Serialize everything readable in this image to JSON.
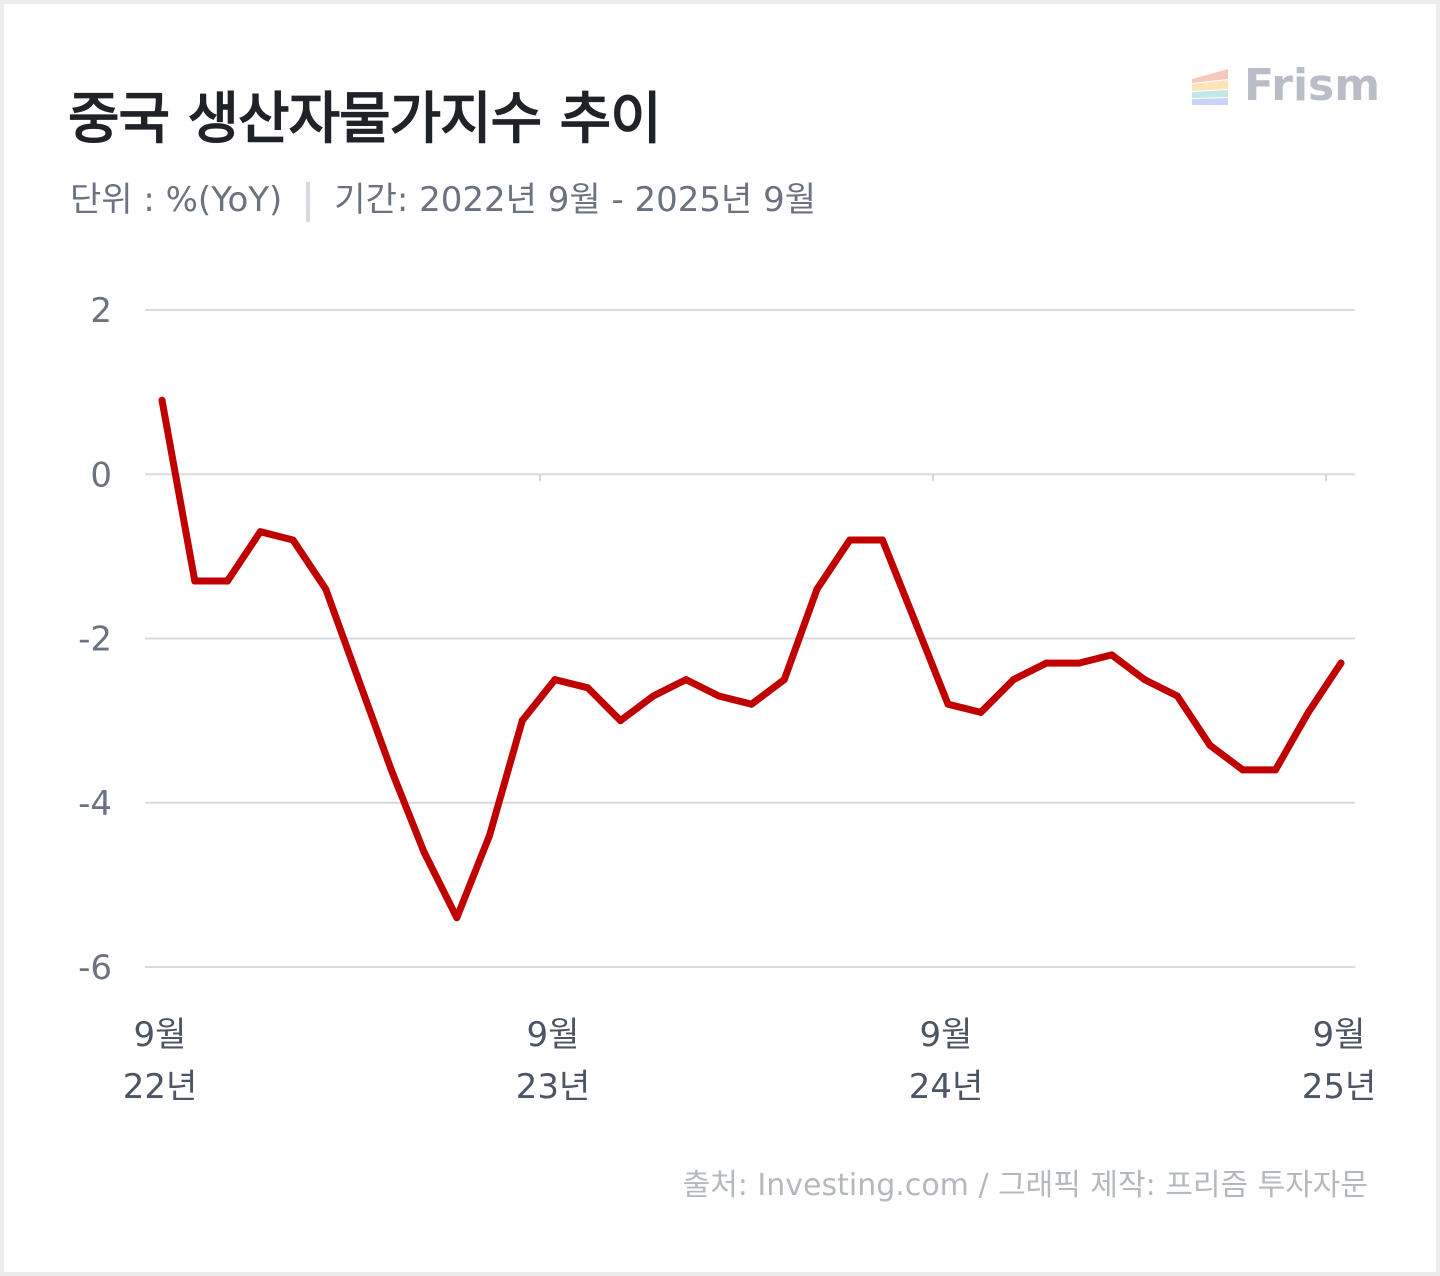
{
  "header": {
    "title": "중국 생산자물가지수 추이",
    "unit_label": "단위 : %(YoY)",
    "period_label": "기간: 2022년 9월 - 2025년 9월"
  },
  "brand": {
    "name": "Frism",
    "logo_icon": "stacked-layers-logo"
  },
  "footer": {
    "source": "출처: Investing.com / 그래픽 제작: 프리즘 투자자문"
  },
  "colors": {
    "line": "#c00000",
    "grid": "#d7dbe0",
    "axis_text": "#6b7280"
  },
  "chart_data": {
    "type": "line",
    "title": "중국 생산자물가지수 추이",
    "ylim": [
      -6,
      2
    ],
    "y_ticks": [
      2,
      0,
      -2,
      -4,
      -6
    ],
    "y_tick_labels": [
      "2",
      "0",
      "-2",
      "-4",
      "-6"
    ],
    "grid": true,
    "x_tick_labels": [
      {
        "month": "9월",
        "year": "22년"
      },
      {
        "month": "9월",
        "year": "23년"
      },
      {
        "month": "9월",
        "year": "24년"
      },
      {
        "month": "9월",
        "year": "25년"
      }
    ],
    "x": [
      "2022-09",
      "2022-10",
      "2022-11",
      "2022-12",
      "2023-01",
      "2023-02",
      "2023-03",
      "2023-04",
      "2023-05",
      "2023-06",
      "2023-07",
      "2023-08",
      "2023-09",
      "2023-10",
      "2023-11",
      "2023-12",
      "2024-01",
      "2024-02",
      "2024-03",
      "2024-04",
      "2024-05",
      "2024-06",
      "2024-07",
      "2024-08",
      "2024-09",
      "2024-10",
      "2024-11",
      "2024-12",
      "2025-01",
      "2025-02",
      "2025-03",
      "2025-04",
      "2025-05",
      "2025-06",
      "2025-07",
      "2025-08",
      "2025-09"
    ],
    "series": [
      {
        "values": [
          0.9,
          -1.3,
          -1.3,
          -0.7,
          -0.8,
          -1.4,
          -2.5,
          -3.6,
          -4.6,
          -5.4,
          -4.4,
          -3.0,
          -2.5,
          -2.6,
          -3.0,
          -2.7,
          -2.5,
          -2.7,
          -2.8,
          -2.5,
          -1.4,
          -0.8,
          -0.8,
          -1.8,
          -2.8,
          -2.9,
          -2.5,
          -2.3,
          -2.3,
          -2.2,
          -2.5,
          -2.7,
          -3.3,
          -3.6,
          -3.6,
          -2.9,
          -2.3
        ]
      }
    ]
  }
}
